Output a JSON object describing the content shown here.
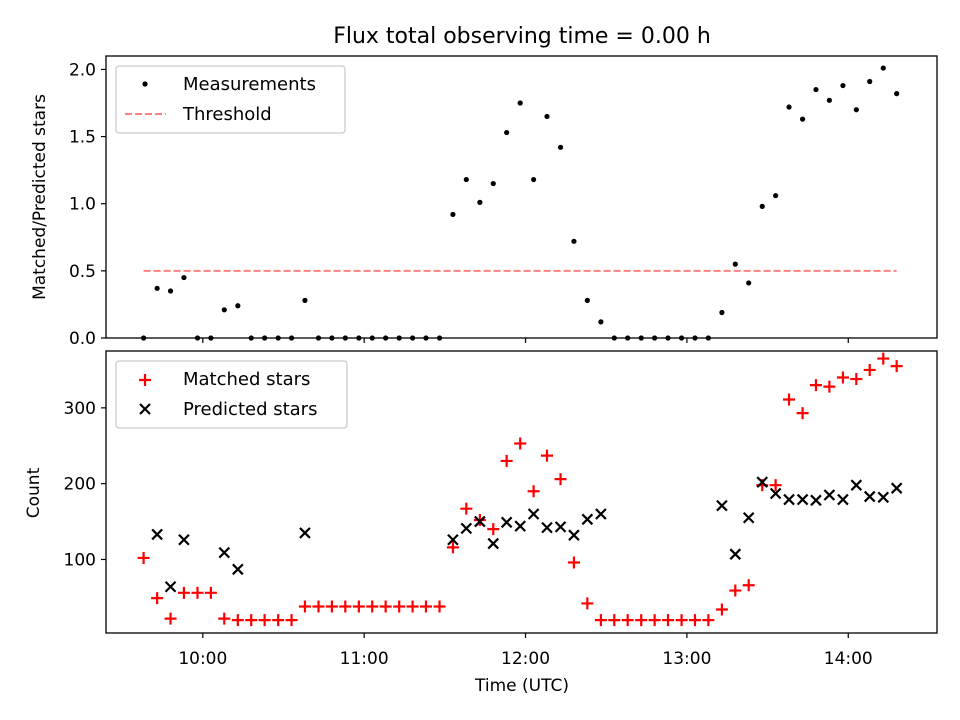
{
  "figure": {
    "title": "Flux total observing time = 0.00 h",
    "xlabel": "Time (UTC)"
  },
  "chart_data": [
    {
      "type": "scatter",
      "title": "Flux total observing time = 0.00 h",
      "ylabel": "Matched/Predicted stars",
      "xlabel": "",
      "x_unit": "hours (UTC)",
      "xlim": [
        9.4,
        14.55
      ],
      "ylim": [
        0,
        2.1
      ],
      "yticks": [
        0.0,
        0.5,
        1.0,
        1.5,
        2.0
      ],
      "ytick_labels": [
        "0.0",
        "0.5",
        "1.0",
        "1.5",
        "2.0"
      ],
      "xticks": [
        10,
        11,
        12,
        13,
        14
      ],
      "grid": false,
      "legend": "upper-left",
      "series": [
        {
          "name": "Measurements",
          "marker": "dot",
          "color": "#000000",
          "x": [
            9.633,
            9.717,
            9.8,
            9.883,
            9.967,
            10.05,
            10.133,
            10.217,
            10.3,
            10.383,
            10.467,
            10.55,
            10.633,
            10.717,
            10.8,
            10.883,
            10.967,
            11.05,
            11.133,
            11.217,
            11.3,
            11.383,
            11.467,
            11.55,
            11.633,
            11.717,
            11.8,
            11.883,
            11.967,
            12.05,
            12.133,
            12.217,
            12.3,
            12.383,
            12.467,
            12.55,
            12.633,
            12.717,
            12.8,
            12.883,
            12.967,
            13.05,
            13.133,
            13.217,
            13.3,
            13.383,
            13.467,
            13.55,
            13.633,
            13.717,
            13.8,
            13.883,
            13.967,
            14.05,
            14.133,
            14.217,
            14.3
          ],
          "y": [
            0.0,
            0.37,
            0.35,
            0.45,
            0.0,
            0.0,
            0.21,
            0.24,
            0.0,
            0.0,
            0.0,
            0.0,
            0.28,
            0.0,
            0.0,
            0.0,
            0.0,
            0.0,
            0.0,
            0.0,
            0.0,
            0.0,
            0.0,
            0.92,
            1.18,
            1.01,
            1.15,
            1.53,
            1.75,
            1.18,
            1.65,
            1.42,
            0.72,
            0.28,
            0.12,
            0.0,
            0.0,
            0.0,
            0.0,
            0.0,
            0.0,
            0.0,
            0.0,
            0.19,
            0.55,
            0.41,
            0.98,
            1.06,
            1.72,
            1.63,
            1.85,
            1.77,
            1.88,
            1.7,
            1.91,
            2.01,
            1.82
          ]
        },
        {
          "name": "Threshold",
          "style": "dashed",
          "color": "#ff8080",
          "x": [
            9.633,
            14.3
          ],
          "y": [
            0.5,
            0.5
          ]
        }
      ]
    },
    {
      "type": "scatter",
      "title": "",
      "ylabel": "Count",
      "xlabel": "Time (UTC)",
      "x_unit": "hours (UTC)",
      "xlim": [
        9.4,
        14.55
      ],
      "ylim": [
        3,
        375
      ],
      "yticks": [
        100,
        200,
        300
      ],
      "ytick_labels": [
        "100",
        "200",
        "300"
      ],
      "xticks": [
        10,
        11,
        12,
        13,
        14
      ],
      "xtick_labels": [
        "10:00",
        "11:00",
        "12:00",
        "13:00",
        "14:00"
      ],
      "grid": false,
      "legend": "upper-left",
      "series": [
        {
          "name": "Matched stars",
          "marker": "plus",
          "color": "#ff0000",
          "x": [
            9.633,
            9.717,
            9.8,
            9.883,
            9.967,
            10.05,
            10.133,
            10.217,
            10.3,
            10.383,
            10.467,
            10.55,
            10.633,
            10.717,
            10.8,
            10.883,
            10.967,
            11.05,
            11.133,
            11.217,
            11.3,
            11.383,
            11.467,
            11.55,
            11.633,
            11.717,
            11.8,
            11.883,
            11.967,
            12.05,
            12.133,
            12.217,
            12.3,
            12.383,
            12.467,
            12.55,
            12.633,
            12.717,
            12.8,
            12.883,
            12.967,
            13.05,
            13.133,
            13.217,
            13.3,
            13.383,
            13.467,
            13.55,
            13.633,
            13.717,
            13.8,
            13.883,
            13.967,
            14.05,
            14.133,
            14.217,
            14.3
          ],
          "y": [
            102,
            49,
            22,
            56,
            56,
            56,
            22,
            20,
            20,
            20,
            20,
            20,
            38,
            38,
            38,
            38,
            38,
            38,
            38,
            38,
            38,
            38,
            38,
            116,
            167,
            152,
            140,
            230,
            253,
            190,
            237,
            206,
            96,
            42,
            20,
            20,
            20,
            20,
            20,
            20,
            20,
            20,
            20,
            34,
            59,
            66,
            198,
            198,
            311,
            293,
            330,
            328,
            340,
            338,
            350,
            365,
            355
          ]
        },
        {
          "name": "Predicted stars",
          "marker": "x",
          "color": "#000000",
          "x": [
            9.717,
            9.8,
            9.883,
            10.133,
            10.217,
            10.633,
            11.55,
            11.633,
            11.717,
            11.8,
            11.883,
            11.967,
            12.05,
            12.133,
            12.217,
            12.3,
            12.383,
            12.467,
            13.217,
            13.3,
            13.383,
            13.467,
            13.55,
            13.633,
            13.717,
            13.8,
            13.883,
            13.967,
            14.05,
            14.133,
            14.217,
            14.3
          ],
          "y": [
            133,
            64,
            126,
            109,
            87,
            135,
            126,
            141,
            150,
            121,
            149,
            144,
            160,
            142,
            143,
            132,
            153,
            160,
            171,
            107,
            155,
            202,
            187,
            179,
            179,
            178,
            185,
            179,
            198,
            183,
            182,
            194
          ]
        }
      ]
    }
  ]
}
